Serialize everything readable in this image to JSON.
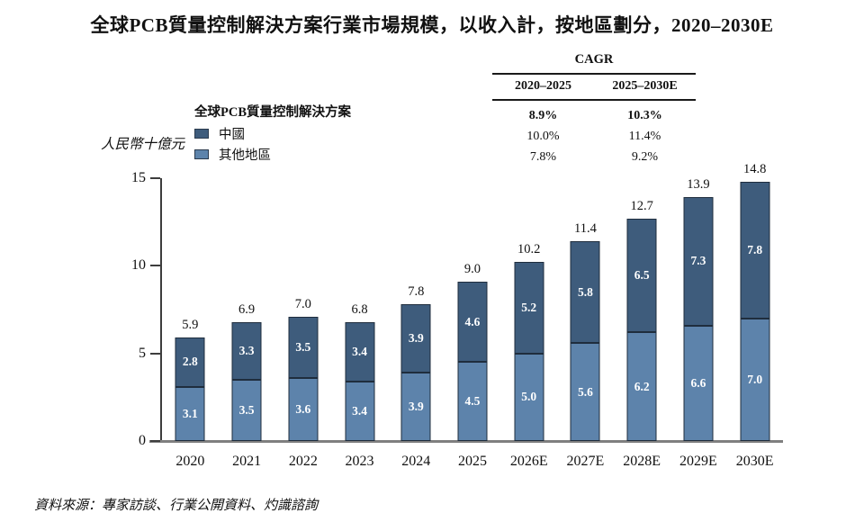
{
  "title": "全球PCB質量控制解決方案行業市場規模，以收入計，按地區劃分，2020–2030E",
  "y_axis_label": "人民幣十億元",
  "source": "資料來源：專家訪談、行業公開資料、灼識諮詢",
  "cagr_table": {
    "title": "CAGR",
    "columns": [
      "2020–2025",
      "2025–2030E"
    ],
    "rows": [
      {
        "label": "全球PCB質量控制解決方案",
        "values": [
          "8.9%",
          "10.3%"
        ],
        "bold": true
      },
      {
        "label": "中國",
        "values": [
          "10.0%",
          "11.4%"
        ],
        "bold": false
      },
      {
        "label": "其他地區",
        "values": [
          "7.8%",
          "9.2%"
        ],
        "bold": false
      }
    ]
  },
  "legend": {
    "header": "全球PCB質量控制解決方案",
    "items": [
      {
        "label": "中國",
        "color": "#3e5c7c"
      },
      {
        "label": "其他地區",
        "color": "#5d83ab"
      }
    ]
  },
  "colors": {
    "china": "#3e5c7c",
    "other_regions": "#5d83ab",
    "bar_border": "#1f2d3d",
    "axis": "#3d3d3d",
    "baseline": "#7f7f7f"
  },
  "chart_data": {
    "type": "bar",
    "stacked": true,
    "title": "全球PCB質量控制解決方案行業市場規模，以收入計，按地區劃分，2020–2030E",
    "ylabel": "人民幣十億元",
    "xlabel": "",
    "unit": "人民幣十億元 (RMB billions)",
    "categories": [
      "2020",
      "2021",
      "2022",
      "2023",
      "2024",
      "2025",
      "2026E",
      "2027E",
      "2028E",
      "2029E",
      "2030E"
    ],
    "series": [
      {
        "name": "其他地區",
        "color": "#5d83ab",
        "values": [
          3.1,
          3.5,
          3.6,
          3.4,
          3.9,
          4.5,
          5.0,
          5.6,
          6.2,
          6.6,
          7.0
        ]
      },
      {
        "name": "中國",
        "color": "#3e5c7c",
        "values": [
          2.8,
          3.3,
          3.5,
          3.4,
          3.9,
          4.6,
          5.2,
          5.8,
          6.5,
          7.3,
          7.8
        ]
      }
    ],
    "totals": [
      5.9,
      6.9,
      7.0,
      6.8,
      7.8,
      9.0,
      10.2,
      11.4,
      12.7,
      13.9,
      14.8
    ],
    "yticks": [
      0,
      5,
      10,
      15
    ],
    "ylim": [
      0,
      15
    ],
    "grid": false,
    "legend_position": "top-left",
    "cagr": {
      "overall": {
        "2020-2025": "8.9%",
        "2025-2030E": "10.3%"
      },
      "中國": {
        "2020-2025": "10.0%",
        "2025-2030E": "11.4%"
      },
      "其他地區": {
        "2020-2025": "7.8%",
        "2025-2030E": "9.2%"
      }
    }
  }
}
